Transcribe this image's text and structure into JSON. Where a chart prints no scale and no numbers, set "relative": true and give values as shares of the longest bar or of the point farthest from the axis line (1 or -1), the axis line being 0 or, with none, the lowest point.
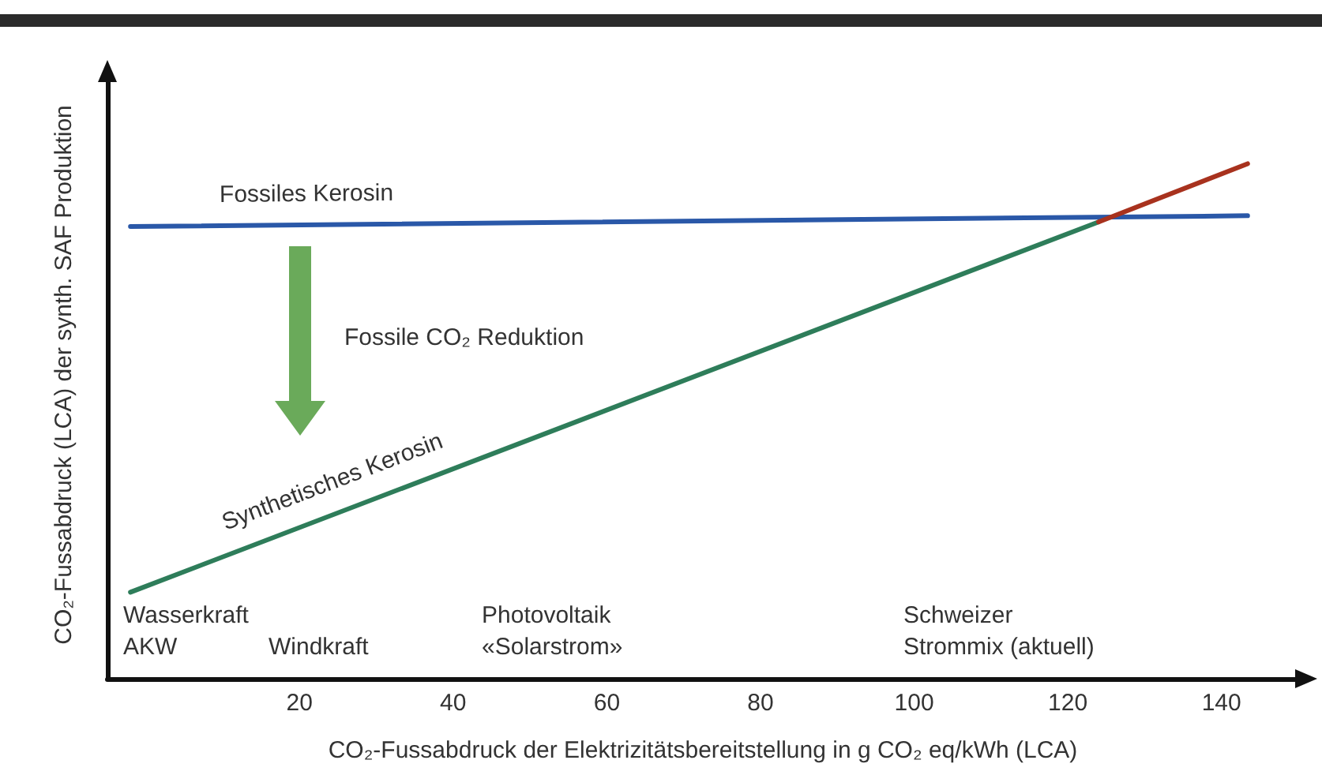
{
  "chart_data": {
    "type": "line",
    "relative": true,
    "xlabel": "CO₂-Fussabdruck der Elektrizitätsbereitstellung in g CO₂ eq/kWh (LCA)",
    "ylabel": "CO₂-Fussabdruck (LCA) der synth. SAF Produktion",
    "xlim": [
      -5,
      150
    ],
    "xticks": [
      20,
      40,
      60,
      80,
      100,
      120,
      140
    ],
    "tick_labels": "x",
    "grid": false,
    "legend": false,
    "marker": "none",
    "series": [
      {
        "name": "Fossiles Kerosin",
        "color": "#2a58a8",
        "x": [
          -2,
          143.4
        ],
        "values": [
          0.878,
          0.899
        ]
      },
      {
        "name": "Synthetisches Kerosin",
        "color": "#2e7d5a",
        "x": [
          -2,
          124
        ],
        "values": [
          0.168,
          0.887
        ]
      },
      {
        "color": "#a8321e",
        "x": [
          124,
          143.4
        ],
        "values": [
          0.887,
          1.0
        ]
      }
    ],
    "annotations": [
      "Fossile CO₂ Reduktion",
      "Wasserkraft\nAKW",
      "Windkraft",
      "Photovoltaik\n«Solarstrom»",
      "Schweizer\nStrommix (aktuell)"
    ]
  }
}
